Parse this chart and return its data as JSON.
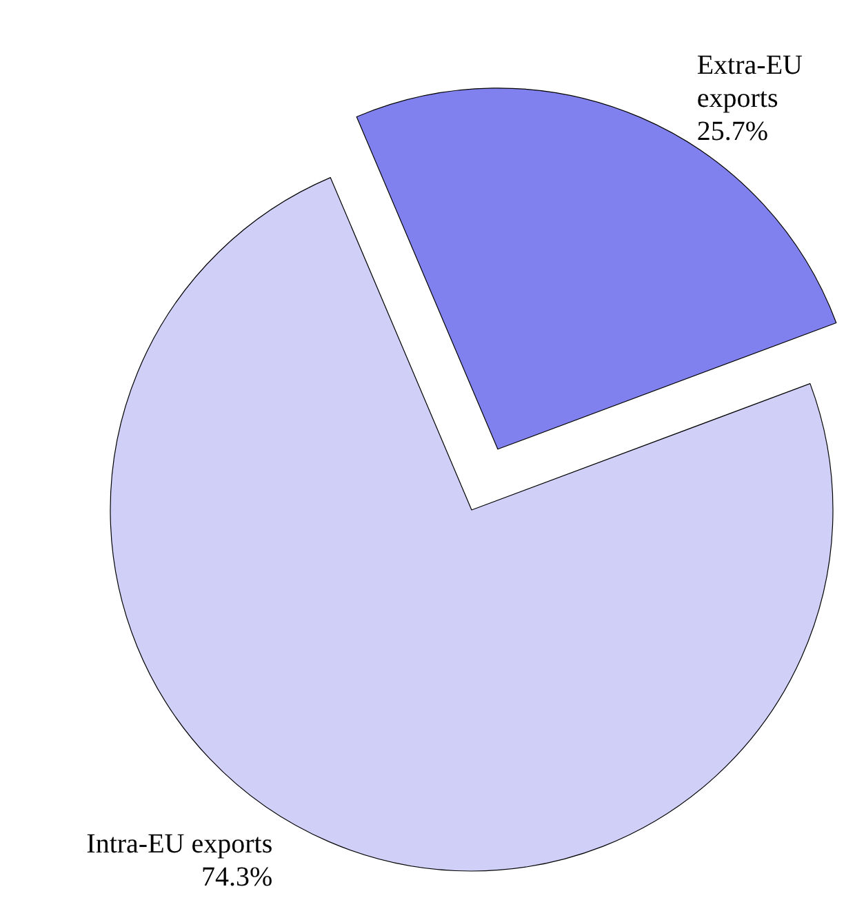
{
  "chart_data": {
    "type": "pie",
    "categories": [
      "Extra-EU exports",
      "Intra-EU exports"
    ],
    "values": [
      25.7,
      74.3
    ],
    "colors": [
      "#8080ee",
      "#cfcff8"
    ],
    "value_labels": [
      "25.7%",
      "74.3%"
    ]
  }
}
